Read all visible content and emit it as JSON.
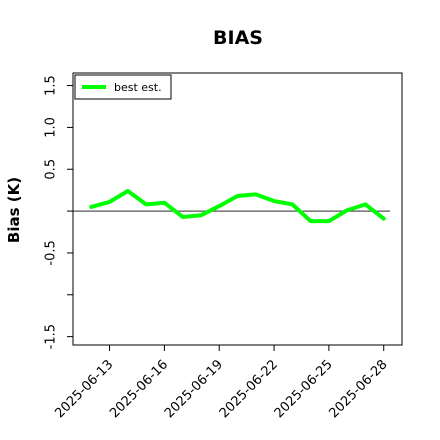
{
  "chart_data": {
    "type": "line",
    "title": "BIAS",
    "xlabel": "",
    "ylabel": "Bias (K)",
    "x": [
      "2025-06-12",
      "2025-06-13",
      "2025-06-14",
      "2025-06-15",
      "2025-06-16",
      "2025-06-17",
      "2025-06-18",
      "2025-06-19",
      "2025-06-20",
      "2025-06-21",
      "2025-06-22",
      "2025-06-23",
      "2025-06-24",
      "2025-06-25",
      "2025-06-26",
      "2025-06-27",
      "2025-06-28"
    ],
    "series": [
      {
        "name": "best est.",
        "color": "#00ff00",
        "values": [
          0.05,
          0.11,
          0.24,
          0.08,
          0.1,
          -0.07,
          -0.05,
          0.06,
          0.18,
          0.2,
          0.12,
          0.08,
          -0.12,
          -0.12,
          0.01,
          0.08,
          -0.09
        ]
      }
    ],
    "reference_line": {
      "y": 0,
      "color": "#555555"
    },
    "xticks": [
      "2025-06-13",
      "2025-06-16",
      "2025-06-19",
      "2025-06-22",
      "2025-06-25",
      "2025-06-28"
    ],
    "yticks": [
      -1.5,
      -1.0,
      -0.5,
      0.0,
      0.5,
      1.0,
      1.5
    ],
    "ytick_labels": [
      "-1.5",
      "",
      "-0.5",
      "",
      "0.5",
      "1.0",
      "1.5"
    ],
    "ylim": [
      -1.6,
      1.65
    ],
    "xlim": [
      "2025-06-11",
      "2025-06-29"
    ],
    "grid": false,
    "legend_position": "top-left"
  }
}
